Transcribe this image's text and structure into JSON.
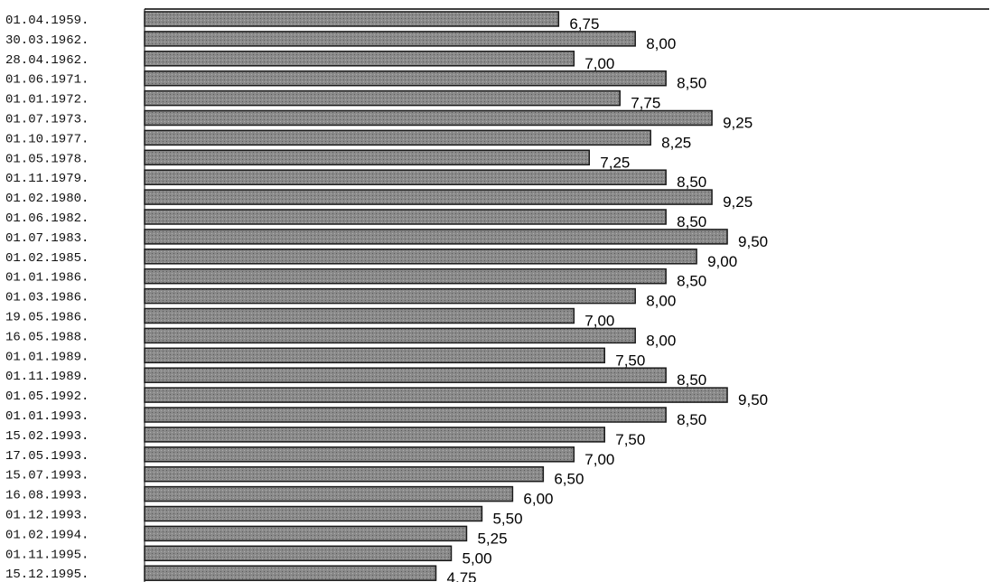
{
  "colors": {
    "bar_fill": "#8a8a8a",
    "bar_stroke": "#1a1a1a",
    "axis": "#000000",
    "background": "#ffffff"
  },
  "chart_data": {
    "type": "bar",
    "orientation": "horizontal",
    "categories": [
      "01.04.1959.",
      "30.03.1962.",
      "28.04.1962.",
      "01.06.1971.",
      "01.01.1972.",
      "01.07.1973.",
      "01.10.1977.",
      "01.05.1978.",
      "01.11.1979.",
      "01.02.1980.",
      "01.06.1982.",
      "01.07.1983.",
      "01.02.1985.",
      "01.01.1986.",
      "01.03.1986.",
      "19.05.1986.",
      "16.05.1988.",
      "01.01.1989.",
      "01.11.1989.",
      "01.05.1992.",
      "01.01.1993.",
      "15.02.1993.",
      "17.05.1993.",
      "15.07.1993.",
      "16.08.1993.",
      "01.12.1993.",
      "01.02.1994.",
      "01.11.1995.",
      "15.12.1995."
    ],
    "values": [
      6.75,
      8.0,
      7.0,
      8.5,
      7.75,
      9.25,
      8.25,
      7.25,
      8.5,
      9.25,
      8.5,
      9.5,
      9.0,
      8.5,
      8.0,
      7.0,
      8.0,
      7.5,
      8.5,
      9.5,
      8.5,
      7.5,
      7.0,
      6.5,
      6.0,
      5.5,
      5.25,
      5.0,
      4.75
    ],
    "value_labels": [
      "6,75",
      "8,00",
      "7,00",
      "8,50",
      "7,75",
      "9,25",
      "8,25",
      "7,25",
      "8,50",
      "9,25",
      "8,50",
      "9,50",
      "9,00",
      "8,50",
      "8,00",
      "7,00",
      "8,00",
      "7,50",
      "8,50",
      "9,50",
      "8,50",
      "7,50",
      "7,00",
      "6,50",
      "6,00",
      "5,50",
      "5,25",
      "5,00",
      "4,75"
    ],
    "xlim": [
      0,
      9.5
    ],
    "title": "",
    "xlabel": "",
    "ylabel": "",
    "grid": false,
    "legend": "none"
  }
}
